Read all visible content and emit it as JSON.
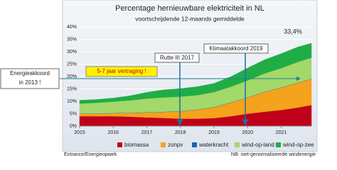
{
  "chart_data": {
    "type": "stacked-area",
    "title": "Percentage hernieuwbare elektriciteit in NL",
    "subtitle": "voortschrijdende 12-maands gemiddelde",
    "x": [
      2015,
      2015.5,
      2016,
      2016.5,
      2017,
      2017.5,
      2018,
      2018.5,
      2019,
      2019.5,
      2020,
      2020.5,
      2021,
      2021.5,
      2021.9
    ],
    "series": [
      {
        "name": "biomassa",
        "color": "#c00018",
        "values": [
          4,
          4,
          4,
          3.8,
          3.5,
          3.3,
          3,
          3,
          3.2,
          4,
          5,
          5.8,
          6.5,
          7.5,
          8.5
        ]
      },
      {
        "name": "zonpv",
        "color": "#f5a21c",
        "values": [
          1,
          1,
          1.2,
          1.5,
          2,
          2.4,
          3,
          3.6,
          4.4,
          5.5,
          6.5,
          8,
          9,
          10,
          10.5
        ]
      },
      {
        "name": "waterkracht",
        "color": "#1f5fbf",
        "values": [
          0.1,
          0.1,
          0.1,
          0.1,
          0.1,
          0.1,
          0.1,
          0.1,
          0.1,
          0.1,
          0.1,
          0.1,
          0.1,
          0.1,
          0.1
        ]
      },
      {
        "name": "wind-op-land",
        "color": "#a3d86a",
        "values": [
          4,
          4.3,
          4.6,
          5,
          5.5,
          5.8,
          5.8,
          5.8,
          6,
          6.3,
          6.8,
          7.3,
          7.8,
          8.3,
          8.5
        ]
      },
      {
        "name": "wind-op-zee",
        "color": "#21ad45",
        "values": [
          1.3,
          1.3,
          1.4,
          1.8,
          2.5,
          3,
          3.2,
          3.4,
          3.5,
          4,
          5,
          5.5,
          5.8,
          6,
          5.8
        ]
      }
    ],
    "xlim": [
      2015,
      2021.9
    ],
    "xticks": [
      2015,
      2016,
      2017,
      2018,
      2019,
      2020,
      2021
    ],
    "ylim": [
      0,
      40
    ],
    "yticks": [
      {
        "value": 0,
        "label": "0%"
      },
      {
        "value": 5,
        "label": "5%"
      },
      {
        "value": 10,
        "label": "10%"
      },
      {
        "value": 15,
        "label": "15%"
      },
      {
        "value": 20,
        "label": "20%"
      },
      {
        "value": 25,
        "label": "25%"
      },
      {
        "value": 30,
        "label": "30%"
      },
      {
        "value": 35,
        "label": "35%"
      },
      {
        "value": 40,
        "label": "40%"
      }
    ],
    "grid": true,
    "annotations": {
      "end_label": "33,4%",
      "energieakkoord": [
        "Energieakkoord",
        "in 2013 !"
      ],
      "vertraging": "5-7 jaar vertraging !",
      "rutte": "Rutte III 2017",
      "klimaatakkoord": "Klimaatakkoord 2019"
    },
    "source": "Entrance/Energieopwek",
    "note": "NB: niet-genormaliseerde windenergie"
  }
}
